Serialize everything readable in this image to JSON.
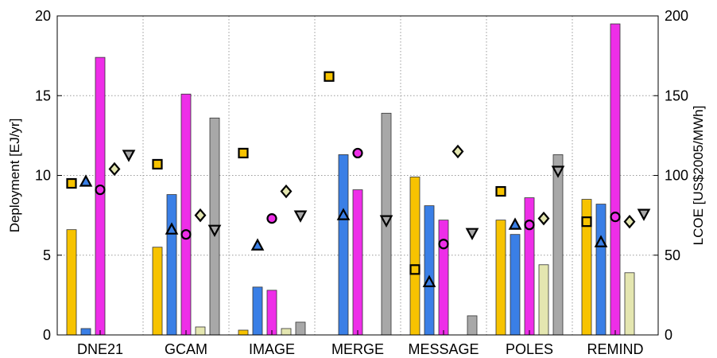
{
  "chart_data": {
    "type": "bar",
    "title": "",
    "categories": [
      "DNE21",
      "GCAM",
      "IMAGE",
      "MERGE",
      "MESSAGE",
      "POLES",
      "REMIND"
    ],
    "ylabel": "Deployment [EJ/yr]",
    "ylabel_right": "LCOE [US$2005/MWh]",
    "ylim": [
      0,
      20
    ],
    "ylim_right": [
      0,
      200
    ],
    "yticks": [
      "0",
      "5",
      "10",
      "15",
      "20"
    ],
    "yticks_right": [
      "0",
      "50",
      "100",
      "150",
      "200"
    ],
    "grid": true,
    "legend": "none",
    "bar_series": [
      {
        "color": "#f7c300",
        "values": [
          6.6,
          5.5,
          0.3,
          0,
          9.9,
          7.2,
          8.5
        ]
      },
      {
        "color": "#3a7fe6",
        "values": [
          0.4,
          8.8,
          3.0,
          11.3,
          8.1,
          6.3,
          8.2
        ]
      },
      {
        "color": "#ee2ee8",
        "values": [
          17.4,
          15.1,
          2.8,
          9.1,
          7.2,
          8.6,
          19.5
        ]
      },
      {
        "color": "#e4e6b0",
        "values": [
          0,
          0.5,
          0.4,
          0,
          0,
          4.4,
          3.9
        ]
      },
      {
        "color": "#a8a8a8",
        "values": [
          0,
          13.6,
          0.8,
          13.9,
          1.2,
          11.3,
          0
        ]
      }
    ],
    "marker_series": [
      {
        "marker": "square",
        "color": "#f7c300",
        "values": [
          95,
          107,
          114,
          162,
          41,
          90,
          71
        ]
      },
      {
        "marker": "triangle-up",
        "color": "#3a7fe6",
        "values": [
          96,
          66,
          56,
          75,
          33,
          69,
          58
        ]
      },
      {
        "marker": "circle",
        "color": "#ee2ee8",
        "values": [
          91,
          63,
          73,
          114,
          57,
          69,
          74
        ]
      },
      {
        "marker": "diamond",
        "color": "#e4e6b0",
        "values": [
          104,
          75,
          90,
          null,
          115,
          73,
          71
        ]
      },
      {
        "marker": "triangle-down",
        "color": "#a8a8a8",
        "values": [
          113,
          66,
          75,
          72,
          64,
          103,
          76
        ]
      }
    ]
  }
}
